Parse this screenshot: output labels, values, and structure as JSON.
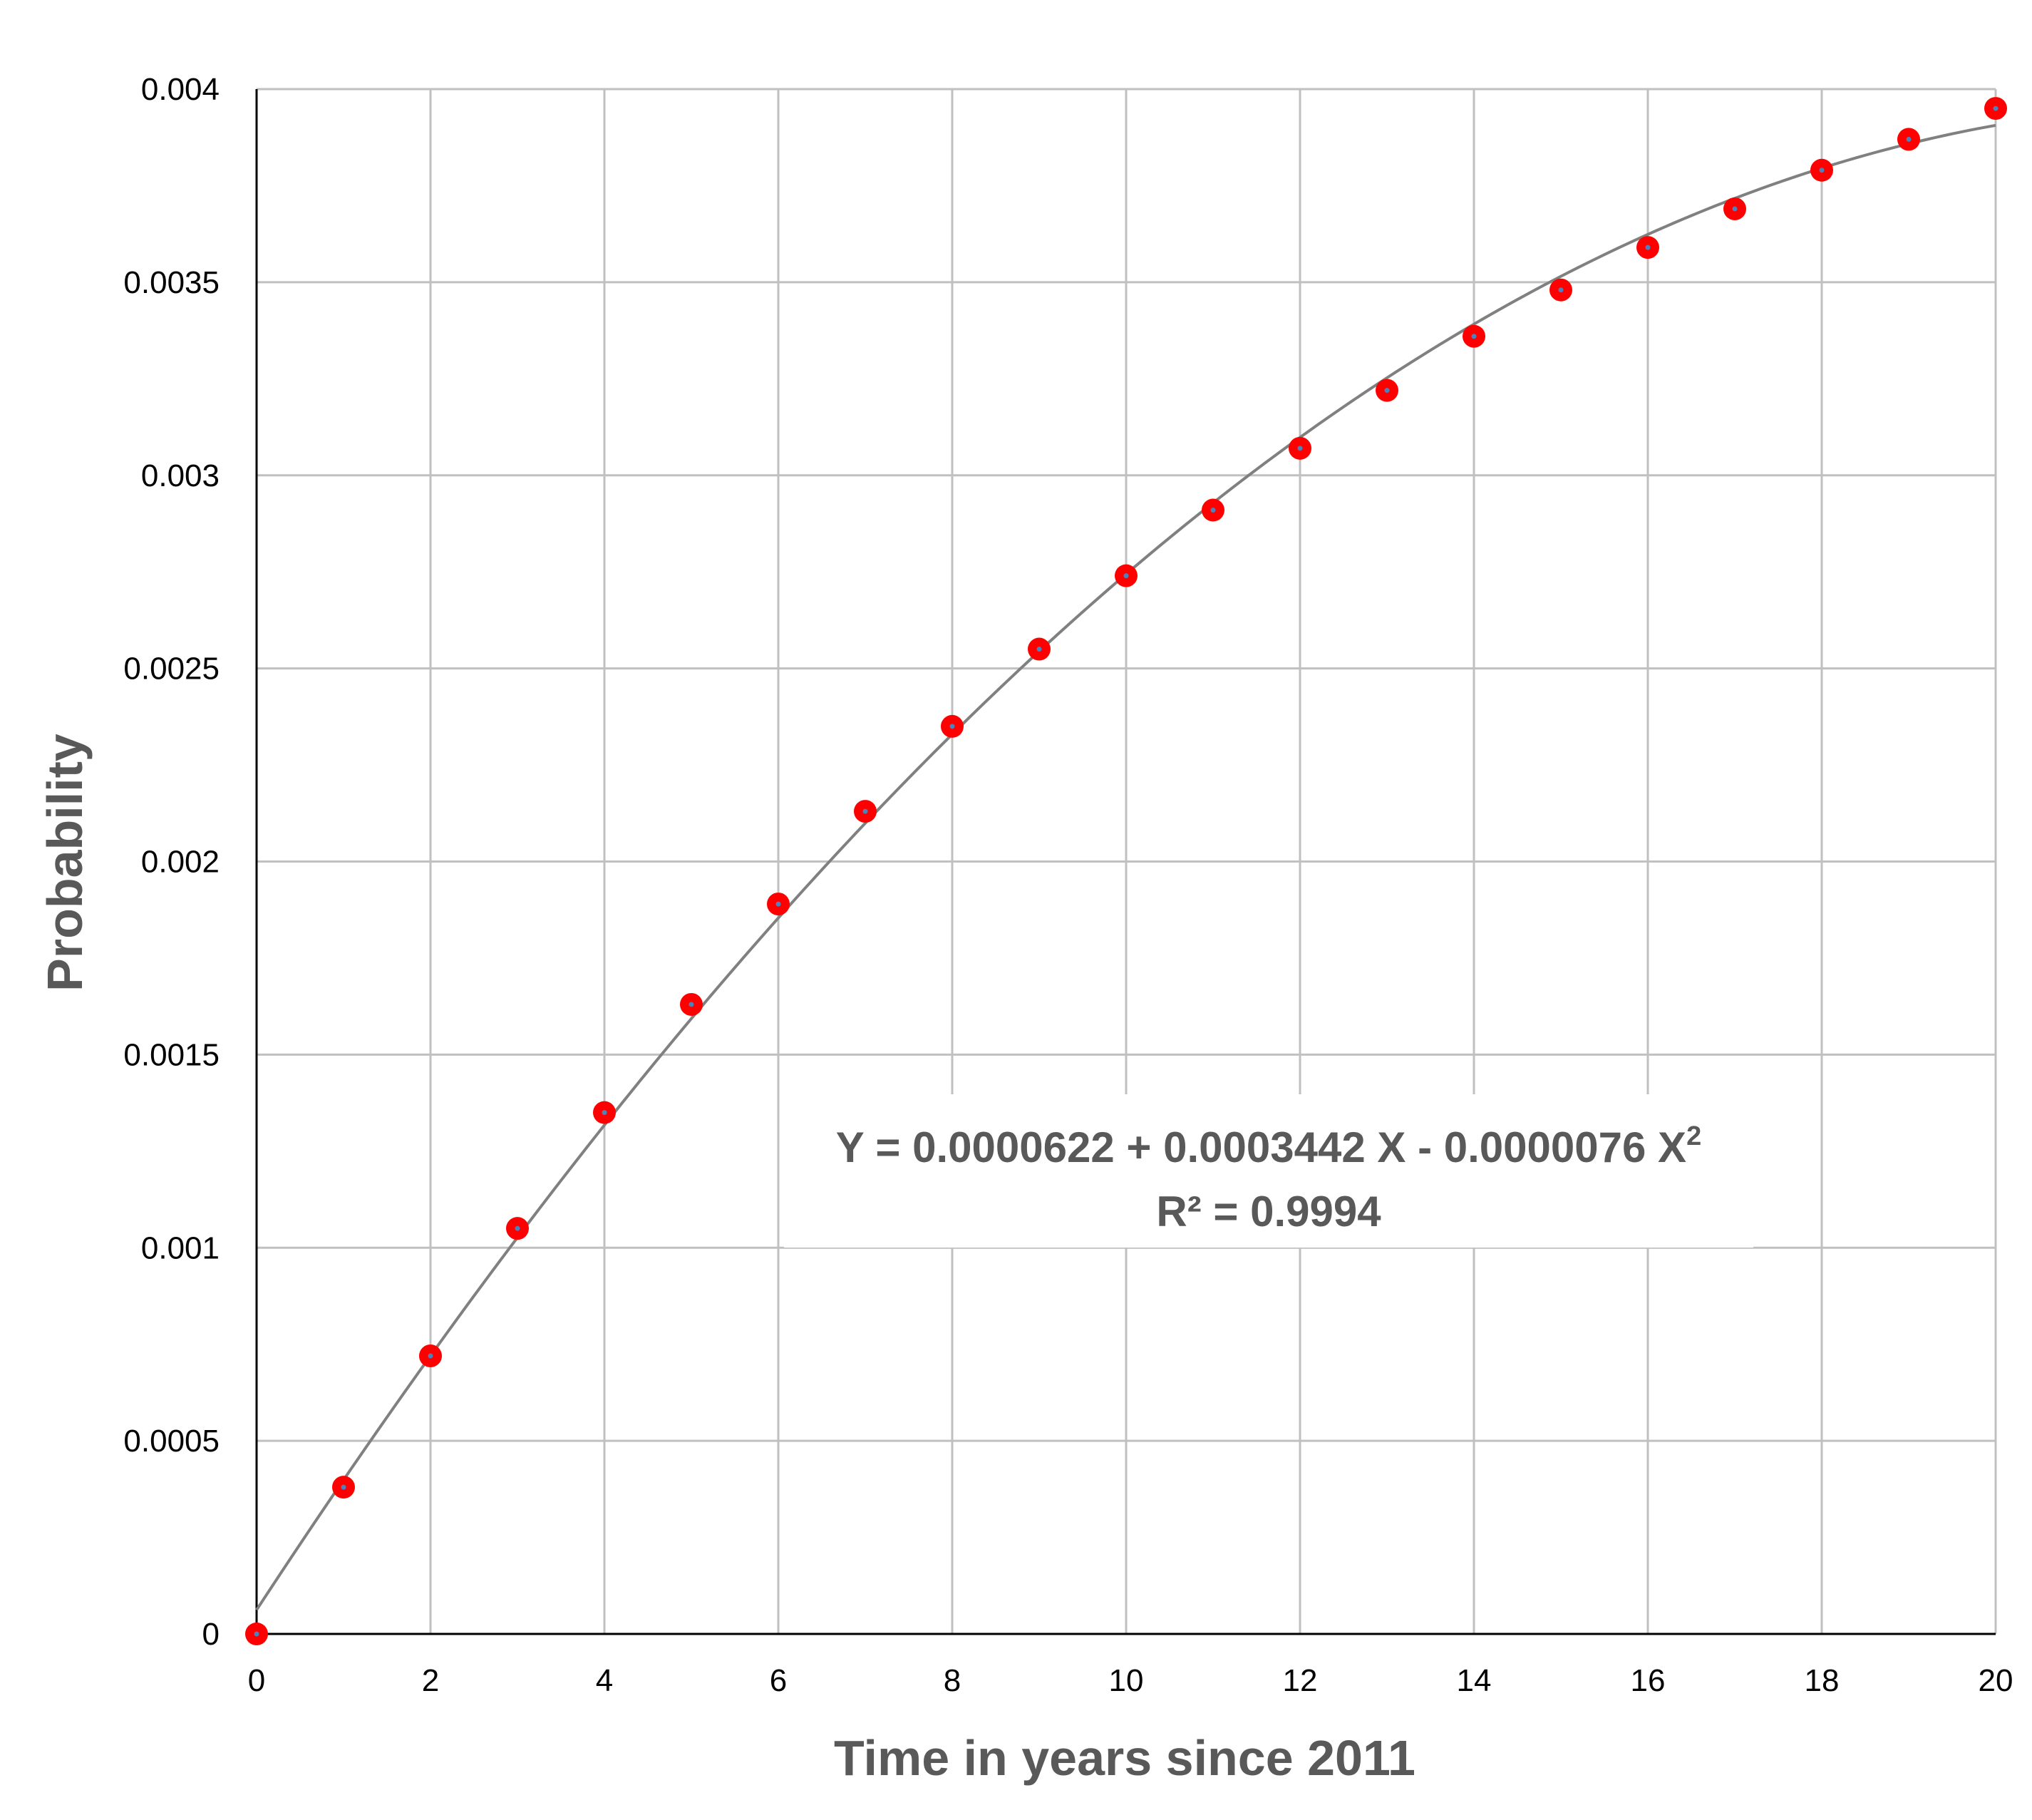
{
  "chart_data": {
    "type": "scatter",
    "title": "",
    "xlabel": "Time in years since 2011",
    "ylabel": "Probability",
    "xlim": [
      0,
      20
    ],
    "ylim": [
      0,
      0.004
    ],
    "x_ticks": [
      0,
      2,
      4,
      6,
      8,
      10,
      12,
      14,
      16,
      18,
      20
    ],
    "x_tick_labels": [
      "0",
      "2",
      "4",
      "6",
      "8",
      "10",
      "12",
      "14",
      "16",
      "18",
      "20"
    ],
    "y_ticks": [
      0,
      0.0005,
      0.001,
      0.0015,
      0.002,
      0.0025,
      0.003,
      0.0035,
      0.004
    ],
    "y_tick_labels": [
      "0",
      "0.0005",
      "0.001",
      "0.0015",
      "0.002",
      "0.0025",
      "0.003",
      "0.0035",
      "0.004"
    ],
    "grid": true,
    "series": [
      {
        "x": [
          0,
          1,
          2,
          3,
          4,
          5,
          6,
          7,
          8,
          9,
          10,
          11,
          12,
          13,
          14,
          15,
          16,
          17,
          18,
          19,
          20
        ],
        "y": [
          0,
          0.00038,
          0.00072,
          0.00105,
          0.00135,
          0.00163,
          0.00189,
          0.00213,
          0.00235,
          0.00255,
          0.00274,
          0.00291,
          0.00307,
          0.00322,
          0.00336,
          0.00348,
          0.00359,
          0.00369,
          0.00379,
          0.00387,
          0.00395
        ],
        "color": "#ff0000"
      }
    ],
    "trendline": {
      "type": "polynomial",
      "coefficients": [
        6.22e-05,
        0.0003442,
        -7.6e-06
      ],
      "color": "#808080"
    },
    "annotations": {
      "equation_prefix": "Y = 0.0000622 + 0.0003442 X - 0.0000076 X",
      "equation_superscript": "2",
      "r_squared": "R² = 0.9994"
    }
  }
}
